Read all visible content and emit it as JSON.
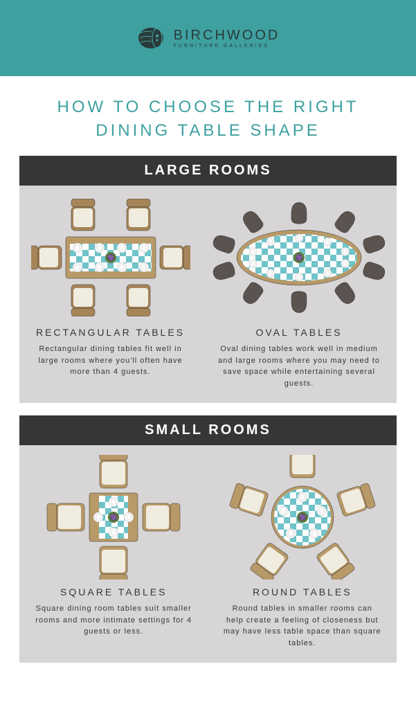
{
  "brand": {
    "name": "BIRCHWOOD",
    "subtitle": "FURNITURE GALLERIES",
    "header_bg": "#3fa0a0",
    "text_color": "#2a3a3a"
  },
  "title": "HOW TO CHOOSE THE RIGHT DINING TABLE SHAPE",
  "title_color": "#3fa0a0",
  "colors": {
    "section_bg": "#d7d5d6",
    "section_header_bg": "#363636",
    "section_header_text": "#ffffff",
    "body_text": "#363636",
    "table_wood": "#b89968",
    "chair_brown": "#a68558",
    "chair_dark": "#5a5350",
    "chair_light": "#b89968",
    "cloth_blue": "#6fc3c9",
    "cloth_white": "#ffffff",
    "plate": "#f2f2f2",
    "plant_green": "#5a7a3a",
    "plant_purple": "#6a4a8a"
  },
  "sections": [
    {
      "header": "LARGE ROOMS",
      "cells": [
        {
          "title": "RECTANGULAR TABLES",
          "desc": "Rectangular dining tables fit well in large rooms where you'll often have more than 4 guests.",
          "shape": "rectangular",
          "chairs": 6,
          "chair_color": "#a68558"
        },
        {
          "title": "OVAL TABLES",
          "desc": "Oval dining tables work well in medium and large rooms where you may need to save space while entertaining several guests.",
          "shape": "oval",
          "chairs": 10,
          "chair_color": "#5a5350"
        }
      ]
    },
    {
      "header": "SMALL ROOMS",
      "cells": [
        {
          "title": "SQUARE TABLES",
          "desc": "Square dining room tables suit smaller rooms and more intimate settings for 4 guests or less.",
          "shape": "square",
          "chairs": 4,
          "chair_color": "#b89968"
        },
        {
          "title": "ROUND TABLES",
          "desc": "Round tables in smaller rooms can help create a feeling of closeness but may have less table space than square tables.",
          "shape": "round",
          "chairs": 5,
          "chair_color": "#b89968"
        }
      ]
    }
  ]
}
